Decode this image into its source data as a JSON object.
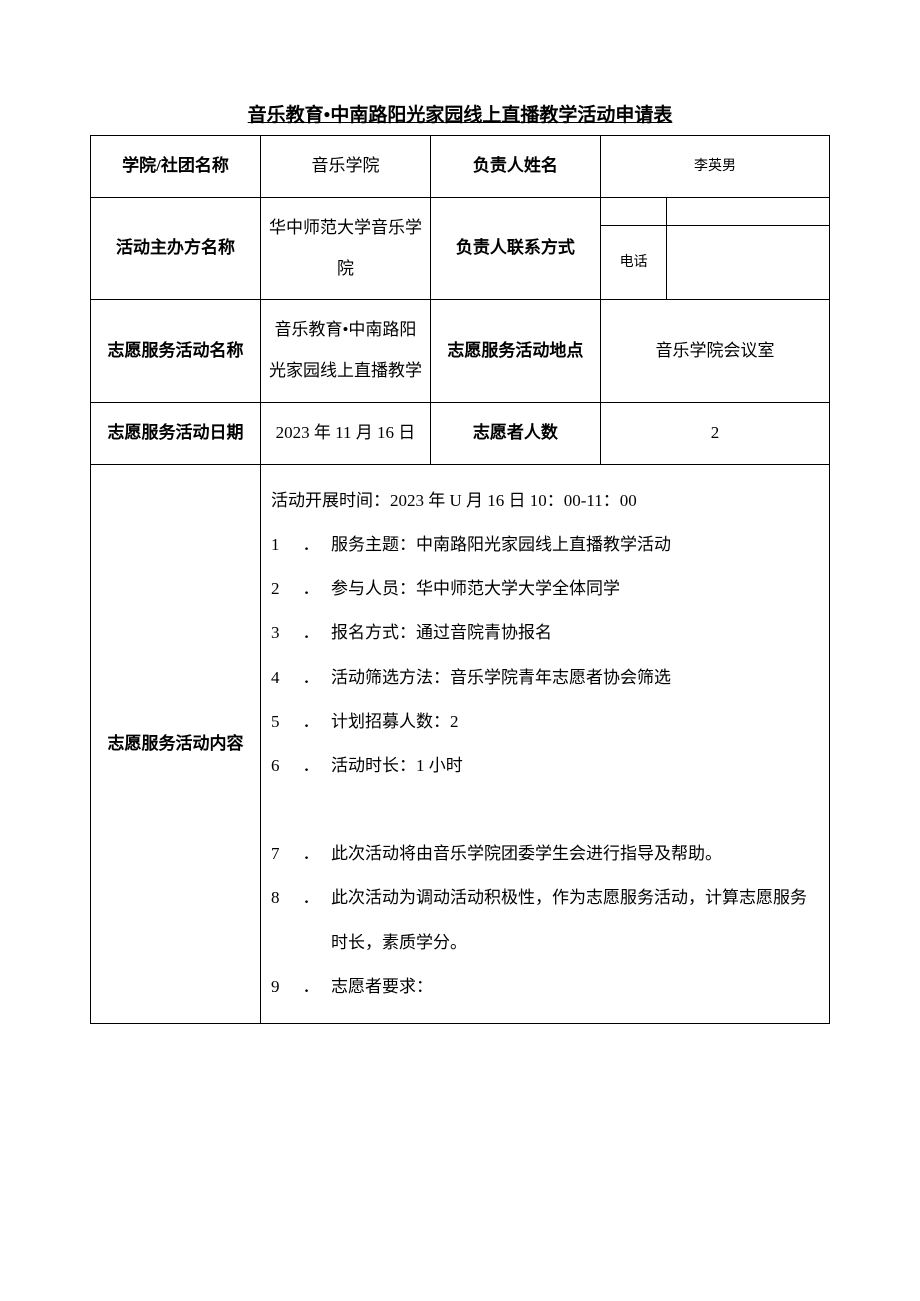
{
  "title": "音乐教育•中南路阳光家园线上直播教学活动申请表",
  "rows": {
    "r1": {
      "label1": "学院/社团名称",
      "value1": "音乐学院",
      "label2": "负责人姓名",
      "value2": "李英男"
    },
    "r2": {
      "label1": "活动主办方名称",
      "value1": "华中师范大学音乐学院",
      "label2": "负责人联系方式",
      "phone_label": "电话",
      "phone_value": ""
    },
    "r3": {
      "label1": "志愿服务活动名称",
      "value1": "音乐教育•中南路阳光家园线上直播教学",
      "label2": "志愿服务活动地点",
      "value2": "音乐学院会议室"
    },
    "r4": {
      "label1": "志愿服务活动日期",
      "value1": "2023 年 11 月 16 日",
      "label2": "志愿者人数",
      "value2": "2"
    },
    "r5": {
      "label": "志愿服务活动内容",
      "intro": "活动开展时间：2023 年 U 月 16 日 10：00-11：00",
      "items": [
        {
          "n": "1",
          "dot": "．",
          "t": "服务主题：中南路阳光家园线上直播教学活动"
        },
        {
          "n": "2",
          "dot": "．",
          "t": "参与人员：华中师范大学大学全体同学"
        },
        {
          "n": "3",
          "dot": "．",
          "t": "报名方式：通过音院青协报名"
        },
        {
          "n": "4",
          "dot": "．",
          "t": "活动筛选方法：音乐学院青年志愿者协会筛选"
        },
        {
          "n": "5",
          "dot": "．",
          "t": "计划招募人数：2"
        },
        {
          "n": "6",
          "dot": "．",
          "t": "活动时长：1 小时"
        },
        {
          "n": "7",
          "dot": "．",
          "t": "此次活动将由音乐学院团委学生会进行指导及帮助。"
        },
        {
          "n": "8",
          "dot": "．",
          "t": "此次活动为调动活动积极性，作为志愿服务活动，计算志愿服务时长，素质学分。"
        },
        {
          "n": "9",
          "dot": "．",
          "t": "志愿者要求："
        }
      ]
    }
  }
}
